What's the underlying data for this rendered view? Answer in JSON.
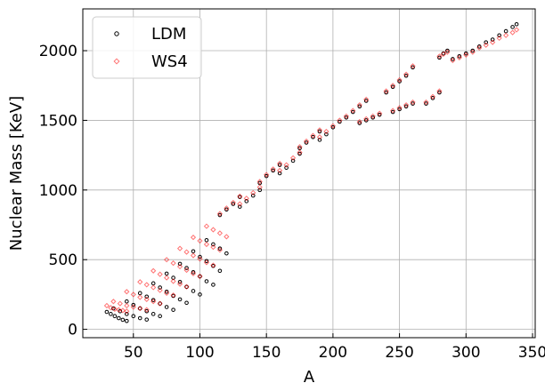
{
  "chart_data": {
    "type": "scatter",
    "xlabel": "A",
    "ylabel": "Nuclear Mass [KeV]",
    "xlim": [
      12,
      352
    ],
    "ylim": [
      -60,
      2300
    ],
    "xticks": [
      50,
      100,
      150,
      200,
      250,
      300,
      350
    ],
    "yticks": [
      0,
      500,
      1000,
      1500,
      2000
    ],
    "grid": true,
    "legend_position": "top-left",
    "series": [
      {
        "name": "LDM",
        "marker": "circle-open",
        "color": "#000000",
        "points": [
          [
            30,
            125
          ],
          [
            33,
            110
          ],
          [
            36,
            95
          ],
          [
            39,
            80
          ],
          [
            42,
            68
          ],
          [
            45,
            60
          ],
          [
            35,
            150
          ],
          [
            40,
            130
          ],
          [
            45,
            110
          ],
          [
            50,
            95
          ],
          [
            55,
            80
          ],
          [
            60,
            70
          ],
          [
            45,
            200
          ],
          [
            50,
            175
          ],
          [
            55,
            150
          ],
          [
            60,
            130
          ],
          [
            65,
            110
          ],
          [
            70,
            95
          ],
          [
            55,
            260
          ],
          [
            60,
            235
          ],
          [
            65,
            210
          ],
          [
            70,
            185
          ],
          [
            75,
            160
          ],
          [
            80,
            140
          ],
          [
            65,
            330
          ],
          [
            70,
            300
          ],
          [
            75,
            270
          ],
          [
            80,
            240
          ],
          [
            85,
            215
          ],
          [
            90,
            190
          ],
          [
            75,
            400
          ],
          [
            80,
            370
          ],
          [
            85,
            340
          ],
          [
            90,
            305
          ],
          [
            95,
            275
          ],
          [
            100,
            250
          ],
          [
            85,
            470
          ],
          [
            90,
            440
          ],
          [
            95,
            410
          ],
          [
            100,
            380
          ],
          [
            105,
            345
          ],
          [
            110,
            320
          ],
          [
            95,
            560
          ],
          [
            100,
            520
          ],
          [
            105,
            490
          ],
          [
            110,
            455
          ],
          [
            115,
            420
          ],
          [
            105,
            640
          ],
          [
            110,
            610
          ],
          [
            115,
            580
          ],
          [
            120,
            545
          ],
          [
            115,
            820
          ],
          [
            120,
            860
          ],
          [
            125,
            900
          ],
          [
            130,
            950
          ],
          [
            130,
            880
          ],
          [
            135,
            920
          ],
          [
            140,
            960
          ],
          [
            145,
            1000
          ],
          [
            145,
            1050
          ],
          [
            150,
            1100
          ],
          [
            155,
            1140
          ],
          [
            160,
            1180
          ],
          [
            160,
            1120
          ],
          [
            165,
            1160
          ],
          [
            170,
            1210
          ],
          [
            175,
            1260
          ],
          [
            175,
            1300
          ],
          [
            180,
            1340
          ],
          [
            185,
            1380
          ],
          [
            190,
            1420
          ],
          [
            190,
            1360
          ],
          [
            195,
            1400
          ],
          [
            200,
            1450
          ],
          [
            205,
            1490
          ],
          [
            210,
            1520
          ],
          [
            215,
            1560
          ],
          [
            220,
            1600
          ],
          [
            225,
            1640
          ],
          [
            220,
            1480
          ],
          [
            225,
            1500
          ],
          [
            230,
            1520
          ],
          [
            235,
            1540
          ],
          [
            240,
            1700
          ],
          [
            245,
            1740
          ],
          [
            250,
            1780
          ],
          [
            255,
            1820
          ],
          [
            260,
            1880
          ],
          [
            245,
            1560
          ],
          [
            250,
            1580
          ],
          [
            255,
            1600
          ],
          [
            260,
            1620
          ],
          [
            270,
            1620
          ],
          [
            275,
            1660
          ],
          [
            280,
            1700
          ],
          [
            280,
            1950
          ],
          [
            283,
            1980
          ],
          [
            286,
            2000
          ],
          [
            290,
            1940
          ],
          [
            295,
            1960
          ],
          [
            300,
            1980
          ],
          [
            305,
            2000
          ],
          [
            310,
            2030
          ],
          [
            315,
            2060
          ],
          [
            320,
            2080
          ],
          [
            325,
            2110
          ],
          [
            330,
            2140
          ],
          [
            335,
            2170
          ],
          [
            338,
            2190
          ]
        ]
      },
      {
        "name": "WS4",
        "marker": "diamond-open",
        "color": "#ff0000",
        "points": [
          [
            30,
            170
          ],
          [
            33,
            155
          ],
          [
            36,
            145
          ],
          [
            39,
            140
          ],
          [
            42,
            135
          ],
          [
            45,
            130
          ],
          [
            35,
            200
          ],
          [
            40,
            185
          ],
          [
            45,
            170
          ],
          [
            50,
            160
          ],
          [
            55,
            150
          ],
          [
            60,
            140
          ],
          [
            45,
            270
          ],
          [
            50,
            250
          ],
          [
            55,
            230
          ],
          [
            60,
            215
          ],
          [
            65,
            200
          ],
          [
            70,
            185
          ],
          [
            55,
            340
          ],
          [
            60,
            320
          ],
          [
            65,
            300
          ],
          [
            70,
            280
          ],
          [
            75,
            260
          ],
          [
            80,
            245
          ],
          [
            65,
            420
          ],
          [
            70,
            395
          ],
          [
            75,
            370
          ],
          [
            80,
            345
          ],
          [
            85,
            325
          ],
          [
            90,
            305
          ],
          [
            75,
            500
          ],
          [
            80,
            475
          ],
          [
            85,
            450
          ],
          [
            90,
            425
          ],
          [
            95,
            400
          ],
          [
            100,
            380
          ],
          [
            85,
            580
          ],
          [
            90,
            555
          ],
          [
            95,
            530
          ],
          [
            100,
            505
          ],
          [
            105,
            480
          ],
          [
            110,
            460
          ],
          [
            95,
            660
          ],
          [
            100,
            635
          ],
          [
            105,
            610
          ],
          [
            110,
            590
          ],
          [
            115,
            570
          ],
          [
            105,
            740
          ],
          [
            110,
            715
          ],
          [
            115,
            690
          ],
          [
            120,
            665
          ],
          [
            115,
            830
          ],
          [
            120,
            870
          ],
          [
            125,
            910
          ],
          [
            130,
            955
          ],
          [
            130,
            900
          ],
          [
            135,
            940
          ],
          [
            140,
            980
          ],
          [
            145,
            1020
          ],
          [
            145,
            1060
          ],
          [
            150,
            1110
          ],
          [
            155,
            1150
          ],
          [
            160,
            1190
          ],
          [
            160,
            1140
          ],
          [
            165,
            1180
          ],
          [
            170,
            1230
          ],
          [
            175,
            1270
          ],
          [
            175,
            1310
          ],
          [
            180,
            1350
          ],
          [
            185,
            1390
          ],
          [
            190,
            1430
          ],
          [
            190,
            1380
          ],
          [
            195,
            1420
          ],
          [
            200,
            1460
          ],
          [
            205,
            1500
          ],
          [
            210,
            1530
          ],
          [
            215,
            1570
          ],
          [
            220,
            1610
          ],
          [
            225,
            1650
          ],
          [
            220,
            1490
          ],
          [
            225,
            1510
          ],
          [
            230,
            1530
          ],
          [
            235,
            1550
          ],
          [
            240,
            1710
          ],
          [
            245,
            1750
          ],
          [
            250,
            1790
          ],
          [
            255,
            1830
          ],
          [
            260,
            1890
          ],
          [
            245,
            1570
          ],
          [
            250,
            1590
          ],
          [
            255,
            1610
          ],
          [
            260,
            1630
          ],
          [
            270,
            1630
          ],
          [
            275,
            1670
          ],
          [
            280,
            1710
          ],
          [
            280,
            1960
          ],
          [
            283,
            1975
          ],
          [
            286,
            1990
          ],
          [
            290,
            1930
          ],
          [
            295,
            1950
          ],
          [
            300,
            1970
          ],
          [
            305,
            1990
          ],
          [
            310,
            2020
          ],
          [
            315,
            2040
          ],
          [
            320,
            2060
          ],
          [
            325,
            2090
          ],
          [
            330,
            2110
          ],
          [
            335,
            2130
          ],
          [
            338,
            2150
          ]
        ]
      }
    ]
  }
}
